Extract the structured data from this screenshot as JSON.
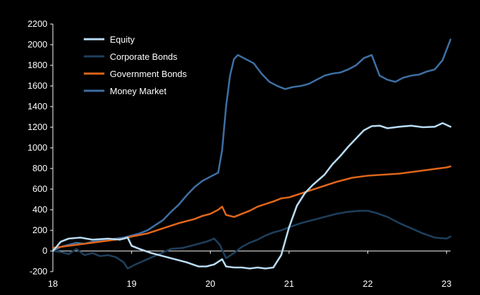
{
  "chart_data": {
    "type": "line",
    "title": "",
    "xlabel": "",
    "ylabel": "",
    "xlim": [
      18,
      23.05
    ],
    "ylim": [
      -200,
      2200
    ],
    "x_ticks": [
      18,
      19,
      20,
      21,
      22,
      23
    ],
    "x_tick_labels": [
      "18",
      "19",
      "20",
      "21",
      "22",
      "23"
    ],
    "y_ticks": [
      -200,
      0,
      200,
      400,
      600,
      800,
      1000,
      1200,
      1400,
      1600,
      1800,
      2000,
      2200
    ],
    "y_tick_labels": [
      "-200",
      "0",
      "200",
      "400",
      "600",
      "800",
      "1000",
      "1200",
      "1400",
      "1600",
      "1800",
      "2000",
      "2200"
    ],
    "grid": false,
    "legend_position": "top-left",
    "series": [
      {
        "name": "Equity",
        "color": "#b9dcf5",
        "x": [
          18.0,
          18.1,
          18.2,
          18.35,
          18.5,
          18.7,
          18.85,
          18.95,
          19.0,
          19.1,
          19.25,
          19.4,
          19.55,
          19.7,
          19.85,
          19.95,
          20.05,
          20.15,
          20.2,
          20.3,
          20.4,
          20.5,
          20.6,
          20.7,
          20.8,
          20.9,
          21.0,
          21.1,
          21.2,
          21.3,
          21.45,
          21.55,
          21.65,
          21.75,
          21.85,
          21.95,
          22.05,
          22.15,
          22.25,
          22.4,
          22.55,
          22.7,
          22.85,
          22.95,
          23.05
        ],
        "values": [
          0,
          90,
          120,
          130,
          110,
          120,
          110,
          130,
          50,
          20,
          -20,
          -50,
          -80,
          -110,
          -150,
          -150,
          -130,
          -80,
          -150,
          -160,
          -160,
          -170,
          -160,
          -170,
          -160,
          -40,
          230,
          440,
          560,
          640,
          740,
          840,
          920,
          1010,
          1090,
          1170,
          1210,
          1215,
          1190,
          1205,
          1215,
          1200,
          1205,
          1240,
          1205
        ]
      },
      {
        "name": "Corporate Bonds",
        "color": "#1e3f5c",
        "x": [
          18.0,
          18.1,
          18.2,
          18.3,
          18.4,
          18.5,
          18.6,
          18.7,
          18.8,
          18.9,
          18.95,
          19.05,
          19.2,
          19.35,
          19.5,
          19.65,
          19.8,
          19.95,
          20.05,
          20.12,
          20.2,
          20.3,
          20.4,
          20.5,
          20.6,
          20.7,
          20.8,
          20.9,
          21.0,
          21.15,
          21.3,
          21.45,
          21.6,
          21.75,
          21.9,
          22.0,
          22.1,
          22.25,
          22.4,
          22.55,
          22.7,
          22.85,
          23.0,
          23.05
        ],
        "values": [
          0,
          -10,
          -30,
          20,
          -40,
          -20,
          -50,
          -40,
          -60,
          -110,
          -170,
          -130,
          -80,
          -30,
          20,
          30,
          60,
          90,
          120,
          60,
          -70,
          -20,
          40,
          80,
          110,
          150,
          180,
          200,
          230,
          270,
          300,
          330,
          360,
          380,
          390,
          390,
          370,
          330,
          270,
          220,
          170,
          130,
          120,
          140
        ]
      },
      {
        "name": "Government Bonds",
        "color": "#e0661a",
        "x": [
          18.0,
          18.1,
          18.2,
          18.3,
          18.4,
          18.5,
          18.6,
          18.7,
          18.8,
          18.9,
          19.0,
          19.2,
          19.4,
          19.6,
          19.8,
          19.9,
          20.0,
          20.1,
          20.15,
          20.2,
          20.3,
          20.4,
          20.5,
          20.6,
          20.8,
          20.9,
          21.0,
          21.2,
          21.4,
          21.6,
          21.8,
          22.0,
          22.2,
          22.4,
          22.6,
          22.8,
          23.0,
          23.05
        ],
        "values": [
          30,
          40,
          50,
          60,
          70,
          80,
          90,
          100,
          110,
          120,
          140,
          170,
          220,
          270,
          310,
          340,
          360,
          400,
          430,
          350,
          330,
          360,
          390,
          430,
          480,
          510,
          520,
          570,
          620,
          670,
          710,
          730,
          740,
          750,
          770,
          790,
          810,
          820
        ]
      },
      {
        "name": "Money Market",
        "color": "#3e6fa3",
        "x": [
          18.0,
          18.1,
          18.2,
          18.3,
          18.4,
          18.5,
          18.6,
          18.7,
          18.8,
          18.9,
          19.0,
          19.1,
          19.2,
          19.3,
          19.4,
          19.5,
          19.6,
          19.7,
          19.8,
          19.9,
          20.0,
          20.1,
          20.15,
          20.2,
          20.25,
          20.3,
          20.35,
          20.45,
          20.55,
          20.65,
          20.75,
          20.85,
          20.95,
          21.05,
          21.15,
          21.25,
          21.35,
          21.45,
          21.55,
          21.65,
          21.75,
          21.85,
          21.95,
          22.05,
          22.15,
          22.25,
          22.35,
          22.45,
          22.55,
          22.65,
          22.75,
          22.85,
          22.95,
          23.05
        ],
        "values": [
          0,
          40,
          60,
          80,
          70,
          90,
          100,
          110,
          120,
          130,
          150,
          170,
          200,
          250,
          300,
          380,
          450,
          540,
          620,
          680,
          720,
          760,
          980,
          1400,
          1700,
          1860,
          1900,
          1860,
          1820,
          1720,
          1640,
          1600,
          1570,
          1590,
          1600,
          1620,
          1660,
          1700,
          1720,
          1730,
          1760,
          1800,
          1870,
          1900,
          1700,
          1660,
          1640,
          1680,
          1700,
          1710,
          1740,
          1760,
          1850,
          2050
        ]
      }
    ]
  }
}
